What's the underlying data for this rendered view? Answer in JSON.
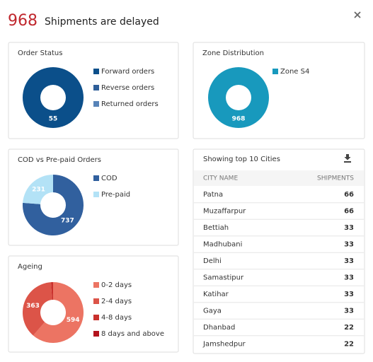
{
  "header": {
    "count": 968,
    "title": "Shipments are delayed"
  },
  "panels": [
    {
      "type": "pie",
      "title": "Order Status",
      "series": [
        {
          "name": "Forward orders",
          "color": "#0b4f8a",
          "value": 55
        },
        {
          "name": "Reverse orders",
          "color": "#2f5f99",
          "value": 0
        },
        {
          "name": "Returned orders",
          "color": "#5783b8",
          "value": 0
        }
      ]
    },
    {
      "type": "pie",
      "title": "Zone Distribution",
      "series": [
        {
          "name": "Zone S4",
          "color": "#1899bd",
          "value": 968
        }
      ]
    },
    {
      "type": "pie",
      "title": "COD vs Pre-paid Orders",
      "series": [
        {
          "name": "COD",
          "color": "#31609e",
          "value": 737
        },
        {
          "name": "Pre-paid",
          "color": "#b3e2f6",
          "value": 231
        }
      ]
    },
    {
      "type": "pie",
      "title": "Ageing",
      "series": [
        {
          "name": "0-2 days",
          "color": "#ec7463",
          "value": 594
        },
        {
          "name": "2-4 days",
          "color": "#dc5448",
          "value": 363
        },
        {
          "name": "4-8 days",
          "color": "#c9302c",
          "value": 11
        },
        {
          "name": "8 days and above",
          "color": "#b3121c",
          "value": 0
        }
      ]
    }
  ],
  "table": {
    "title": "Showing top 10 Cities",
    "columns": [
      "CITY NAME",
      "SHIPMENTS"
    ],
    "rows": [
      [
        "Patna",
        66
      ],
      [
        "Muzaffarpur",
        66
      ],
      [
        "Bettiah",
        33
      ],
      [
        "Madhubani",
        33
      ],
      [
        "Delhi",
        33
      ],
      [
        "Samastipur",
        33
      ],
      [
        "Katihar",
        33
      ],
      [
        "Gaya",
        33
      ],
      [
        "Dhanbad",
        22
      ],
      [
        "Jamshedpur",
        22
      ]
    ]
  }
}
